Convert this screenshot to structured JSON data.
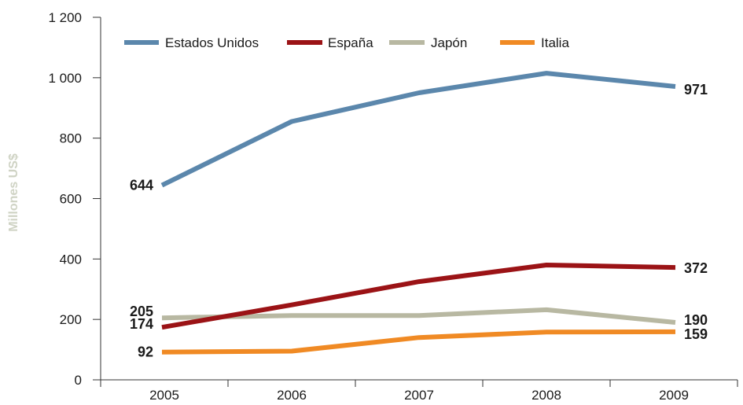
{
  "chart_data": {
    "type": "line",
    "ylabel": "Millones US$",
    "ylim": [
      0,
      1200
    ],
    "yticks": [
      0,
      200,
      400,
      600,
      800,
      1000,
      1200
    ],
    "ytick_labels": [
      "0",
      "200",
      "400",
      "600",
      "800",
      "1 000",
      "1 200"
    ],
    "categories": [
      "2005",
      "2006",
      "2007",
      "2008",
      "2009"
    ],
    "grid": false,
    "legend_position": "top-left",
    "series": [
      {
        "name": "Estados Unidos",
        "color": "#5b87ac",
        "values": [
          644,
          855,
          950,
          1015,
          971
        ],
        "start_label": "644",
        "end_label": "971"
      },
      {
        "name": "España",
        "color": "#9b1316",
        "values": [
          174,
          248,
          325,
          380,
          372
        ],
        "start_label": "174",
        "end_label": "372"
      },
      {
        "name": "Japón",
        "color": "#b8b8a2",
        "values": [
          205,
          213,
          213,
          232,
          190
        ],
        "start_label": "205",
        "end_label": "190"
      },
      {
        "name": "Italia",
        "color": "#f08a24",
        "values": [
          92,
          95,
          140,
          158,
          159
        ],
        "start_label": "92",
        "end_label": "159"
      }
    ]
  }
}
